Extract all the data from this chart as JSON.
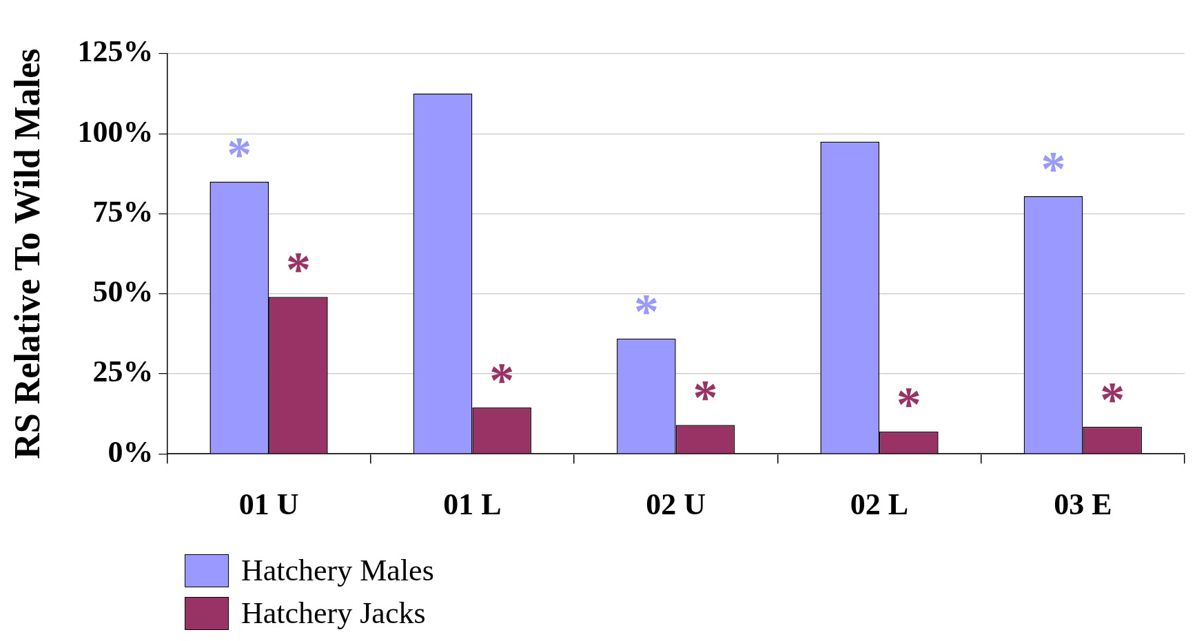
{
  "chart_data": {
    "type": "bar",
    "ylabel": "RS Relative To Wild Males",
    "categories": [
      "01 U",
      "01 L",
      "02 U",
      "02 L",
      "03 E"
    ],
    "series": [
      {
        "name": "Hatchery Males",
        "color": "#9999ff",
        "values": [
          85,
          112.5,
          36,
          97.5,
          80.5
        ]
      },
      {
        "name": "Hatchery Jacks",
        "color": "#993366",
        "values": [
          49,
          14.5,
          9,
          7,
          8.5
        ]
      }
    ],
    "ylim": [
      0,
      125
    ],
    "yticks": [
      {
        "value": 0,
        "label": "0%"
      },
      {
        "value": 25,
        "label": "25%"
      },
      {
        "value": 50,
        "label": "50%"
      },
      {
        "value": 75,
        "label": "75%"
      },
      {
        "value": 100,
        "label": "100%"
      },
      {
        "value": 125,
        "label": "125%"
      }
    ],
    "grid": "y",
    "legend": "bottom left",
    "annotations": [
      {
        "text": "*",
        "x": "01 U",
        "y": 85
      },
      {
        "text": "*",
        "x": "01 U",
        "y": 49
      },
      {
        "text": "*",
        "x": "01 L",
        "y": 14.5
      },
      {
        "text": "*",
        "x": "02 U",
        "y": 36
      },
      {
        "text": "*",
        "x": "02 U",
        "y": 9
      },
      {
        "text": "*",
        "x": "02 L",
        "y": 7
      },
      {
        "text": "*",
        "x": "03 E",
        "y": 80.5
      },
      {
        "text": "*",
        "x": "03 E",
        "y": 8.5
      }
    ]
  }
}
